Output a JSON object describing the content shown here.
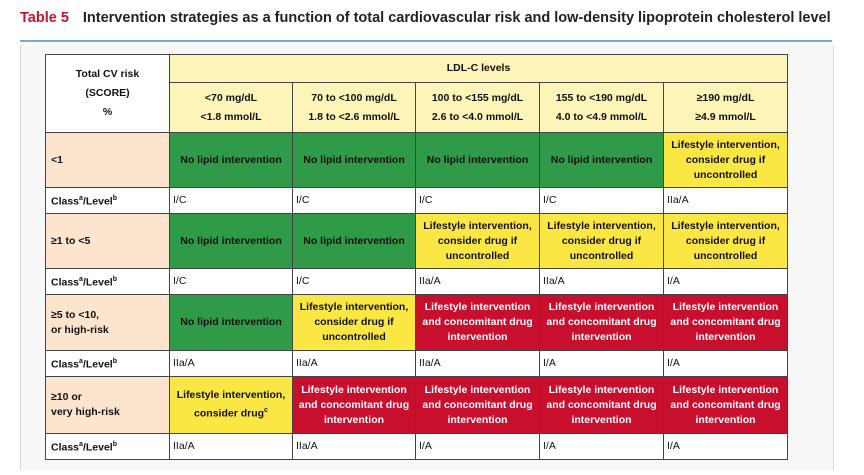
{
  "title": {
    "label": "Table 5",
    "text": "Intervention strategies as a function of total cardiovascular risk and low-density lipoprotein cholesterol level"
  },
  "header": {
    "risk_col": [
      "Total CV risk",
      "(SCORE)",
      "%"
    ],
    "ldl_levels": "LDL-C levels",
    "ranges": [
      {
        "mg": "<70 mg/dL",
        "mmol": "<1.8 mmol/L"
      },
      {
        "mg": "70 to <100 mg/dL",
        "mmol": "1.8 to <2.6 mmol/L"
      },
      {
        "mg": "100 to <155 mg/dL",
        "mmol": "2.6 to <4.0 mmol/L"
      },
      {
        "mg": "155 to <190 mg/dL",
        "mmol": "4.0 to <4.9 mmol/L"
      },
      {
        "mg": "≥190 mg/dL",
        "mmol": "≥4.9 mmol/L"
      }
    ]
  },
  "class_label": {
    "a": "Class",
    "sup_a": "a",
    "mid": "/Level",
    "sup_b": "b"
  },
  "rows": [
    {
      "risk": [
        "<1"
      ],
      "cells": [
        {
          "color": "green",
          "lines": [
            "No lipid intervention"
          ]
        },
        {
          "color": "green",
          "lines": [
            "No lipid intervention"
          ]
        },
        {
          "color": "green",
          "lines": [
            "No lipid intervention"
          ]
        },
        {
          "color": "green",
          "lines": [
            "No lipid intervention"
          ]
        },
        {
          "color": "yellow",
          "lines": [
            "Lifestyle intervention,",
            "consider drug if",
            "uncontrolled"
          ]
        }
      ],
      "classes": [
        "I/C",
        "I/C",
        "I/C",
        "I/C",
        "IIa/A"
      ]
    },
    {
      "risk": [
        "≥1 to <5"
      ],
      "cells": [
        {
          "color": "green",
          "lines": [
            "No lipid intervention"
          ]
        },
        {
          "color": "green",
          "lines": [
            "No lipid intervention"
          ]
        },
        {
          "color": "yellow",
          "lines": [
            "Lifestyle intervention,",
            "consider drug if",
            "uncontrolled"
          ]
        },
        {
          "color": "yellow",
          "lines": [
            "Lifestyle intervention,",
            "consider drug if",
            "uncontrolled"
          ]
        },
        {
          "color": "yellow",
          "lines": [
            "Lifestyle intervention,",
            "consider drug if",
            "uncontrolled"
          ]
        }
      ],
      "classes": [
        "I/C",
        "I/C",
        "IIa/A",
        "IIa/A",
        "I/A"
      ]
    },
    {
      "risk": [
        "≥5 to <10,",
        "or high-risk"
      ],
      "cells": [
        {
          "color": "green",
          "lines": [
            "No lipid intervention"
          ]
        },
        {
          "color": "yellow",
          "lines": [
            "Lifestyle intervention,",
            "consider drug if",
            "uncontrolled"
          ]
        },
        {
          "color": "red",
          "lines": [
            "Lifestyle intervention",
            "and concomitant drug",
            "intervention"
          ]
        },
        {
          "color": "red",
          "lines": [
            "Lifestyle intervention",
            "and concomitant drug",
            "intervention"
          ]
        },
        {
          "color": "red",
          "lines": [
            "Lifestyle intervention",
            "and concomitant drug",
            "intervention"
          ]
        }
      ],
      "classes": [
        "IIa/A",
        "IIa/A",
        "IIa/A",
        "I/A",
        "I/A"
      ]
    },
    {
      "risk": [
        "≥10 or",
        "very high-risk"
      ],
      "cells": [
        {
          "color": "yellow",
          "lines": [
            "Lifestyle intervention,",
            "consider drug"
          ],
          "sup": "c"
        },
        {
          "color": "red",
          "lines": [
            "Lifestyle intervention",
            "and concomitant drug",
            "intervention"
          ]
        },
        {
          "color": "red",
          "lines": [
            "Lifestyle intervention",
            "and concomitant drug",
            "intervention"
          ]
        },
        {
          "color": "red",
          "lines": [
            "Lifestyle intervention",
            "and concomitant drug",
            "intervention"
          ]
        },
        {
          "color": "red",
          "lines": [
            "Lifestyle intervention",
            "and concomitant drug",
            "intervention"
          ]
        }
      ],
      "classes": [
        "IIa/A",
        "IIa/A",
        "I/A",
        "I/A",
        "I/A"
      ]
    }
  ],
  "colors": {
    "green": "#2f9a47",
    "yellow": "#fbe743",
    "red": "#c8102e",
    "risk_bg": "#fde4cf",
    "header_bg": "#fdf4b8",
    "title_label": "#c4122f"
  }
}
